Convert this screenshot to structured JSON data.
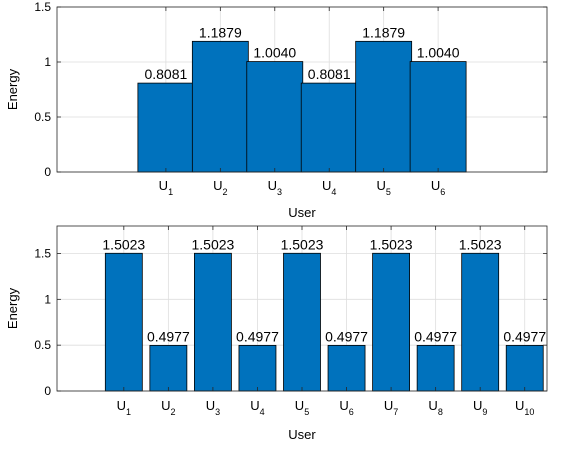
{
  "colors": {
    "bar": "#0072BD",
    "bar_edge": "#000000",
    "grid": "#DEDEDE",
    "axis": "#262626"
  },
  "chart_data": [
    {
      "type": "bar",
      "categories": [
        {
          "base": "U",
          "sub": "1"
        },
        {
          "base": "U",
          "sub": "2"
        },
        {
          "base": "U",
          "sub": "3"
        },
        {
          "base": "U",
          "sub": "4"
        },
        {
          "base": "U",
          "sub": "5"
        },
        {
          "base": "U",
          "sub": "6"
        }
      ],
      "values": [
        0.8081,
        1.1879,
        1.004,
        0.8081,
        1.1879,
        1.004
      ],
      "value_labels": [
        "0.8081",
        "1.1879",
        "1.0040",
        "0.8081",
        "1.1879",
        "1.0040"
      ],
      "xlabel": "User",
      "ylabel": "Energy",
      "xlim": [
        0,
        9
      ],
      "ylim": [
        0,
        1.5
      ],
      "yticks": [
        0,
        0.5,
        1,
        1.5
      ],
      "ytick_labels": [
        "0",
        "0.5",
        "1",
        "1.5"
      ],
      "grid": true
    },
    {
      "type": "bar",
      "categories": [
        {
          "base": "U",
          "sub": "1"
        },
        {
          "base": "U",
          "sub": "2"
        },
        {
          "base": "U",
          "sub": "3"
        },
        {
          "base": "U",
          "sub": "4"
        },
        {
          "base": "U",
          "sub": "5"
        },
        {
          "base": "U",
          "sub": "6"
        },
        {
          "base": "U",
          "sub": "7"
        },
        {
          "base": "U",
          "sub": "8"
        },
        {
          "base": "U",
          "sub": "9"
        },
        {
          "base": "U",
          "sub": "10"
        }
      ],
      "values": [
        1.5023,
        0.4977,
        1.5023,
        0.4977,
        1.5023,
        0.4977,
        1.5023,
        0.4977,
        1.5023,
        0.4977
      ],
      "value_labels": [
        "1.5023",
        "0.4977",
        "1.5023",
        "0.4977",
        "1.5023",
        "0.4977",
        "1.5023",
        "0.4977",
        "1.5023",
        "0.4977"
      ],
      "xlabel": "User",
      "ylabel": "Energy",
      "xlim": [
        -0.5,
        10.5
      ],
      "ylim": [
        0,
        1.8
      ],
      "yticks": [
        0,
        0.5,
        1,
        1.5
      ],
      "ytick_labels": [
        "0",
        "0.5",
        "1",
        "1.5"
      ],
      "grid": true
    }
  ]
}
